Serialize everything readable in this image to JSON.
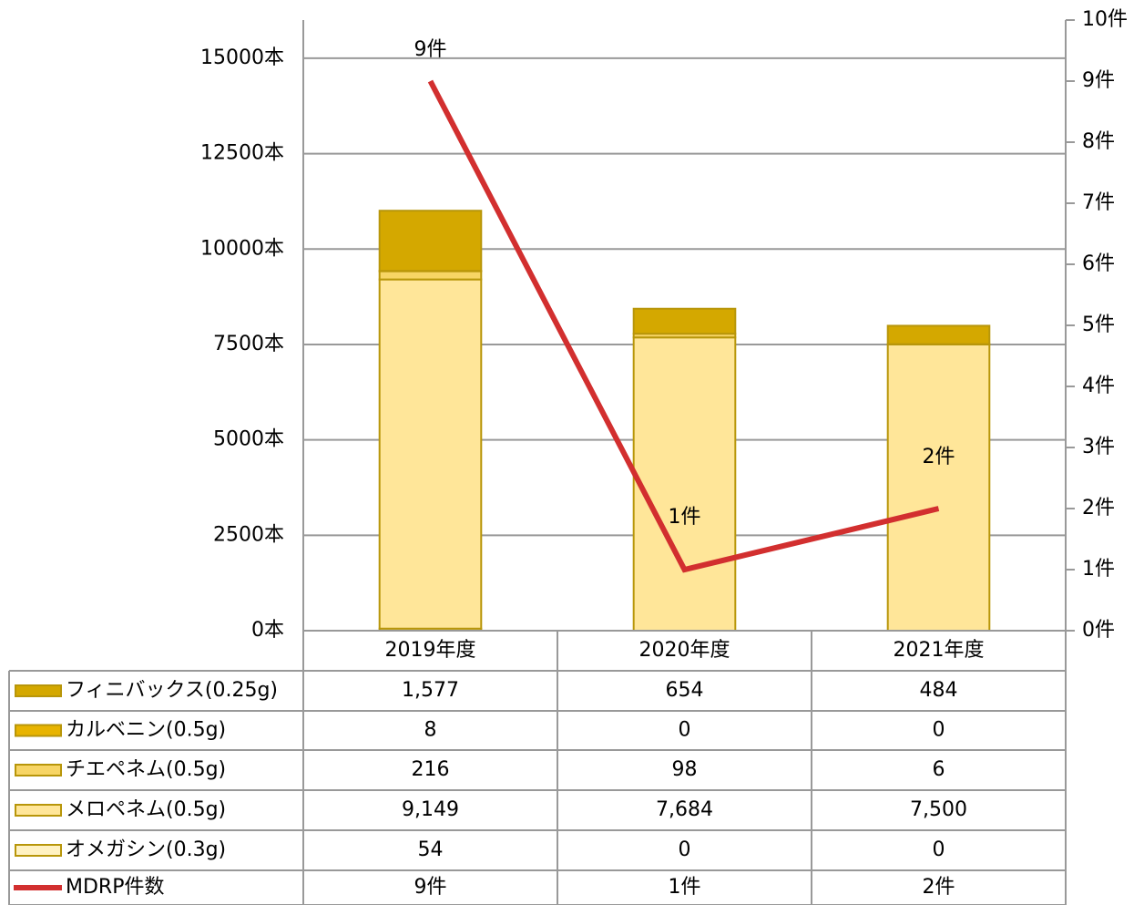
{
  "chart_data": {
    "type": "bar",
    "stacked": true,
    "categories": [
      "2019年度",
      "2020年度",
      "2021年度"
    ],
    "ylim": [
      0,
      16000
    ],
    "yticks": [
      {
        "value": 0,
        "label": "0本"
      },
      {
        "value": 2500,
        "label": "2500本"
      },
      {
        "value": 5000,
        "label": "5000本"
      },
      {
        "value": 7500,
        "label": "7500本"
      },
      {
        "value": 10000,
        "label": "10000本"
      },
      {
        "value": 12500,
        "label": "12500本"
      },
      {
        "value": 15000,
        "label": "15000本"
      }
    ],
    "y2lim": [
      0,
      10
    ],
    "y2ticks": [
      {
        "value": 0,
        "label": "0件"
      },
      {
        "value": 1,
        "label": "1件"
      },
      {
        "value": 2,
        "label": "2件"
      },
      {
        "value": 3,
        "label": "3件"
      },
      {
        "value": 4,
        "label": "4件"
      },
      {
        "value": 5,
        "label": "5件"
      },
      {
        "value": 6,
        "label": "6件"
      },
      {
        "value": 7,
        "label": "7件"
      },
      {
        "value": 8,
        "label": "8件"
      },
      {
        "value": 9,
        "label": "9件"
      },
      {
        "value": 10,
        "label": "10件"
      }
    ],
    "grid": true,
    "series": [
      {
        "name": "フィニバックス(0.25g)",
        "color": "#d4a800",
        "values": [
          1577,
          654,
          484
        ],
        "value_labels": [
          "1,577",
          "654",
          "484"
        ]
      },
      {
        "name": "カルベニン(0.5g)",
        "color": "#e8b400",
        "values": [
          8,
          0,
          0
        ],
        "value_labels": [
          "8",
          "0",
          "0"
        ]
      },
      {
        "name": "チエペネム(0.5g)",
        "color": "#f7d565",
        "values": [
          216,
          98,
          6
        ],
        "value_labels": [
          "216",
          "98",
          "6"
        ]
      },
      {
        "name": "メロペネム(0.5g)",
        "color": "#ffe699",
        "values": [
          9149,
          7684,
          7500
        ],
        "value_labels": [
          "9,149",
          "7,684",
          "7,500"
        ]
      },
      {
        "name": "オメガシン(0.3g)",
        "color": "#fff2c2",
        "values": [
          54,
          0,
          0
        ],
        "value_labels": [
          "54",
          "0",
          "0"
        ]
      },
      {
        "name": "MDRP件数",
        "type": "line",
        "axis": "y2",
        "color": "#d22f2f",
        "values": [
          9,
          1,
          2
        ],
        "value_labels": [
          "9件",
          "1件",
          "2件"
        ]
      }
    ]
  }
}
